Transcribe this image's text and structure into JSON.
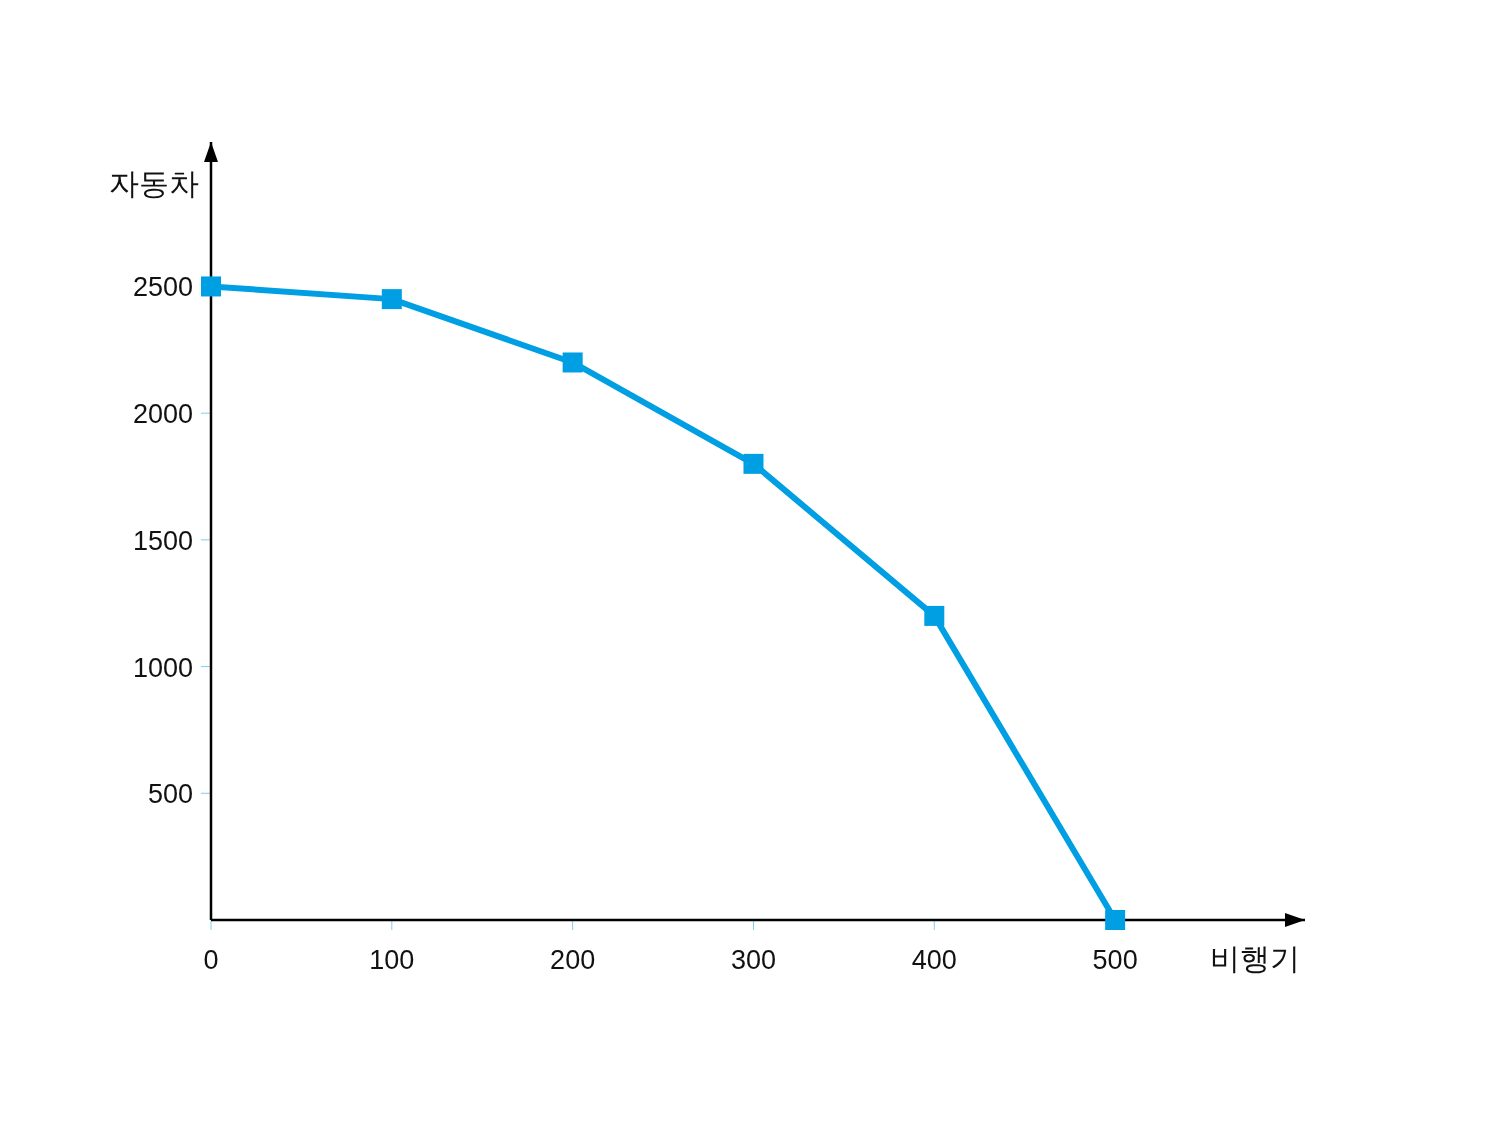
{
  "chart_data": {
    "type": "line",
    "xlabel": "비행기",
    "ylabel": "자동차",
    "x": [
      0,
      100,
      200,
      300,
      400,
      500
    ],
    "series": [
      {
        "color": "#009fe3",
        "values": [
          2500,
          2450,
          2200,
          1800,
          1200,
          0
        ]
      }
    ],
    "xlim": [
      0,
      605
    ],
    "ylim": [
      0,
      3070
    ],
    "xticks": [
      0,
      100,
      200,
      300,
      400,
      500
    ],
    "yticks": [
      500,
      1000,
      1500,
      2000,
      2500
    ],
    "marker": "square",
    "line_style": "solid",
    "grid": false
  }
}
